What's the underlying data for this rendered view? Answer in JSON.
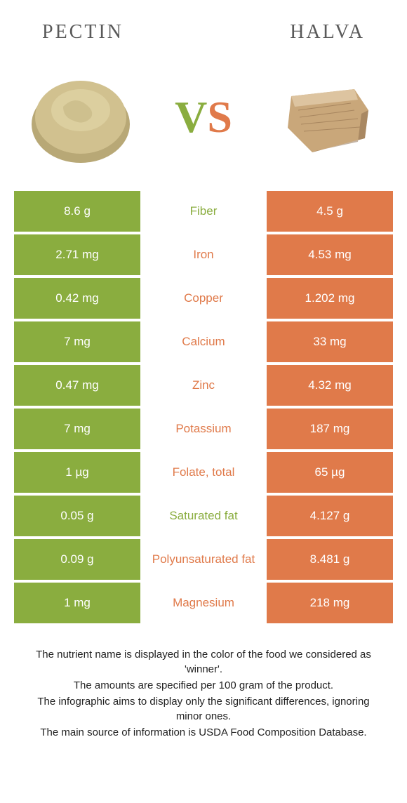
{
  "colors": {
    "green": "#8aad3f",
    "orange": "#e07a4a",
    "pectin_fill": "#d1c18f",
    "pectin_shadow": "#b8a876",
    "halva_fill": "#c9a77a",
    "halva_dark": "#8a6a4a"
  },
  "header": {
    "left": "Pectin",
    "right": "Halva"
  },
  "vs": {
    "v": "V",
    "s": "S"
  },
  "rows": [
    {
      "left": "8.6 g",
      "label": "Fiber",
      "right": "4.5 g",
      "winner": "left"
    },
    {
      "left": "2.71 mg",
      "label": "Iron",
      "right": "4.53 mg",
      "winner": "right"
    },
    {
      "left": "0.42 mg",
      "label": "Copper",
      "right": "1.202 mg",
      "winner": "right"
    },
    {
      "left": "7 mg",
      "label": "Calcium",
      "right": "33 mg",
      "winner": "right"
    },
    {
      "left": "0.47 mg",
      "label": "Zinc",
      "right": "4.32 mg",
      "winner": "right"
    },
    {
      "left": "7 mg",
      "label": "Potassium",
      "right": "187 mg",
      "winner": "right"
    },
    {
      "left": "1 µg",
      "label": "Folate, total",
      "right": "65 µg",
      "winner": "right"
    },
    {
      "left": "0.05 g",
      "label": "Saturated fat",
      "right": "4.127 g",
      "winner": "left"
    },
    {
      "left": "0.09 g",
      "label": "Polyunsaturated fat",
      "right": "8.481 g",
      "winner": "right"
    },
    {
      "left": "1 mg",
      "label": "Magnesium",
      "right": "218 mg",
      "winner": "right"
    }
  ],
  "footer": [
    "The nutrient name is displayed in the color of the food we considered as 'winner'.",
    "The amounts are specified per 100 gram of the product.",
    "The infographic aims to display only the significant differences, ignoring minor ones.",
    "The main source of information is USDA Food Composition Database."
  ]
}
